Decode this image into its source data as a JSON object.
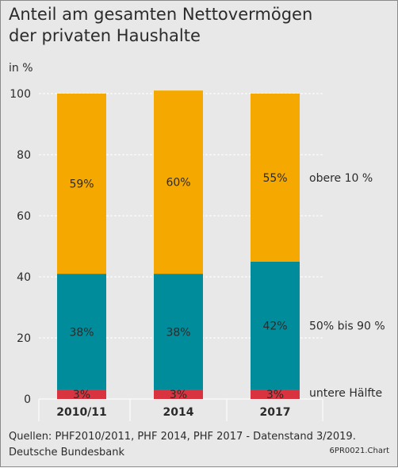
{
  "title_line1": "Anteil am gesamten Nettovermögen",
  "title_line2": "der privaten Haushalte",
  "unit": "in %",
  "source_line1": "Quellen: PHF2010/2011, PHF 2014, PHF 2017 - Datenstand 3/2019.",
  "source_line2": "Deutsche Bundesbank",
  "chart_code": "6PR0021.Chart",
  "colors": {
    "untere": "#d9333f",
    "mitte": "#008c9a",
    "obere": "#f5a800",
    "background": "#e8e8e8",
    "grid": "#ffffff",
    "text": "#2b2b2b"
  },
  "chart_data": {
    "type": "bar",
    "stacked": true,
    "title": "Anteil am gesamten Nettovermögen der privaten Haushalte",
    "ylabel": "in %",
    "ylim": [
      0,
      100
    ],
    "yticks": [
      0,
      20,
      40,
      60,
      80,
      100
    ],
    "categories": [
      "2010/11",
      "2014",
      "2017"
    ],
    "series": [
      {
        "name": "untere Hälfte",
        "values": [
          3,
          3,
          3
        ],
        "labels": [
          "3%",
          "3%",
          "3%"
        ]
      },
      {
        "name": "50% bis 90 %",
        "values": [
          38,
          38,
          42
        ],
        "labels": [
          "38%",
          "38%",
          "42%"
        ]
      },
      {
        "name": "obere 10 %",
        "values": [
          59,
          60,
          55
        ],
        "labels": [
          "59%",
          "60%",
          "55%"
        ]
      }
    ],
    "grid": "horizontal dashed",
    "legend": "right, next to last bar"
  }
}
